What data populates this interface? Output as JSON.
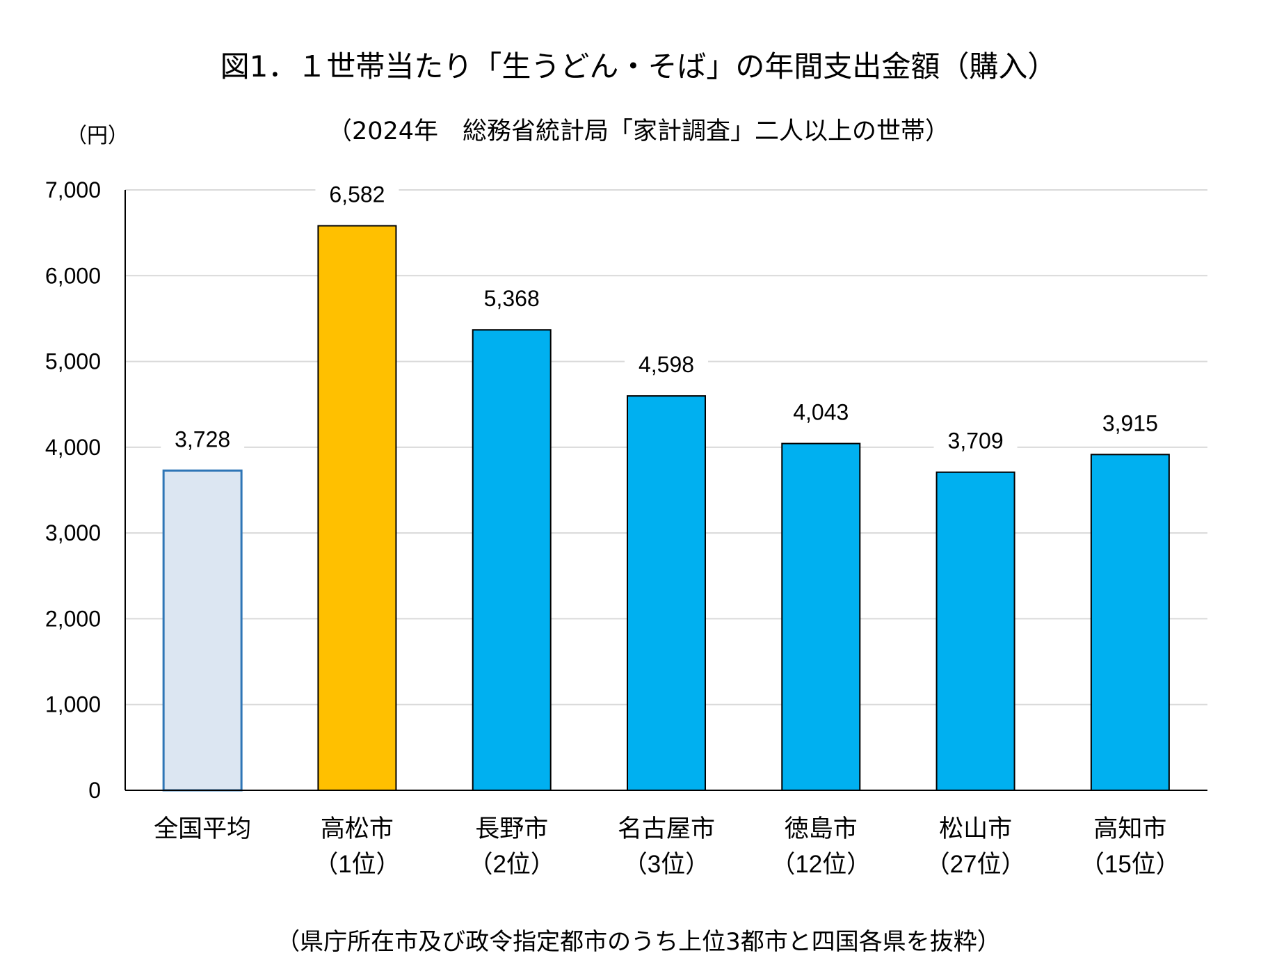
{
  "chart_data": {
    "type": "bar",
    "title": "図1．１世帯当たり「生うどん・そば」の年間支出金額（購入）",
    "subtitle": "（2024年　総務省統計局「家計調査」二人以上の世帯）",
    "ylabel": "（円）",
    "footnote": "（県庁所在市及び政令指定都市のうち上位3都市と四国各県を抜粋）",
    "categories": [
      [
        "全国平均",
        ""
      ],
      [
        "高松市",
        "（1位）"
      ],
      [
        "長野市",
        "（2位）"
      ],
      [
        "名古屋市",
        "（3位）"
      ],
      [
        "徳島市",
        "（12位）"
      ],
      [
        "松山市",
        "（27位）"
      ],
      [
        "高知市",
        "（15位）"
      ]
    ],
    "values": [
      3728,
      6582,
      5368,
      4598,
      4043,
      3709,
      3915
    ],
    "data_labels": [
      "3,728",
      "6,582",
      "5,368",
      "4,598",
      "4,043",
      "3,709",
      "3,915"
    ],
    "ylim": [
      0,
      7000
    ],
    "yticks": [
      0,
      1000,
      2000,
      3000,
      4000,
      5000,
      6000,
      7000
    ],
    "ytick_labels": [
      "0",
      "1,000",
      "2,000",
      "3,000",
      "4,000",
      "5,000",
      "6,000",
      "7,000"
    ],
    "grid": true,
    "colors": {
      "average_fill": "#DCE6F2",
      "average_stroke": "#2E75B6",
      "highlight": "#FFC000",
      "default": "#00B0F0",
      "grid": "#D9D9D9"
    }
  }
}
